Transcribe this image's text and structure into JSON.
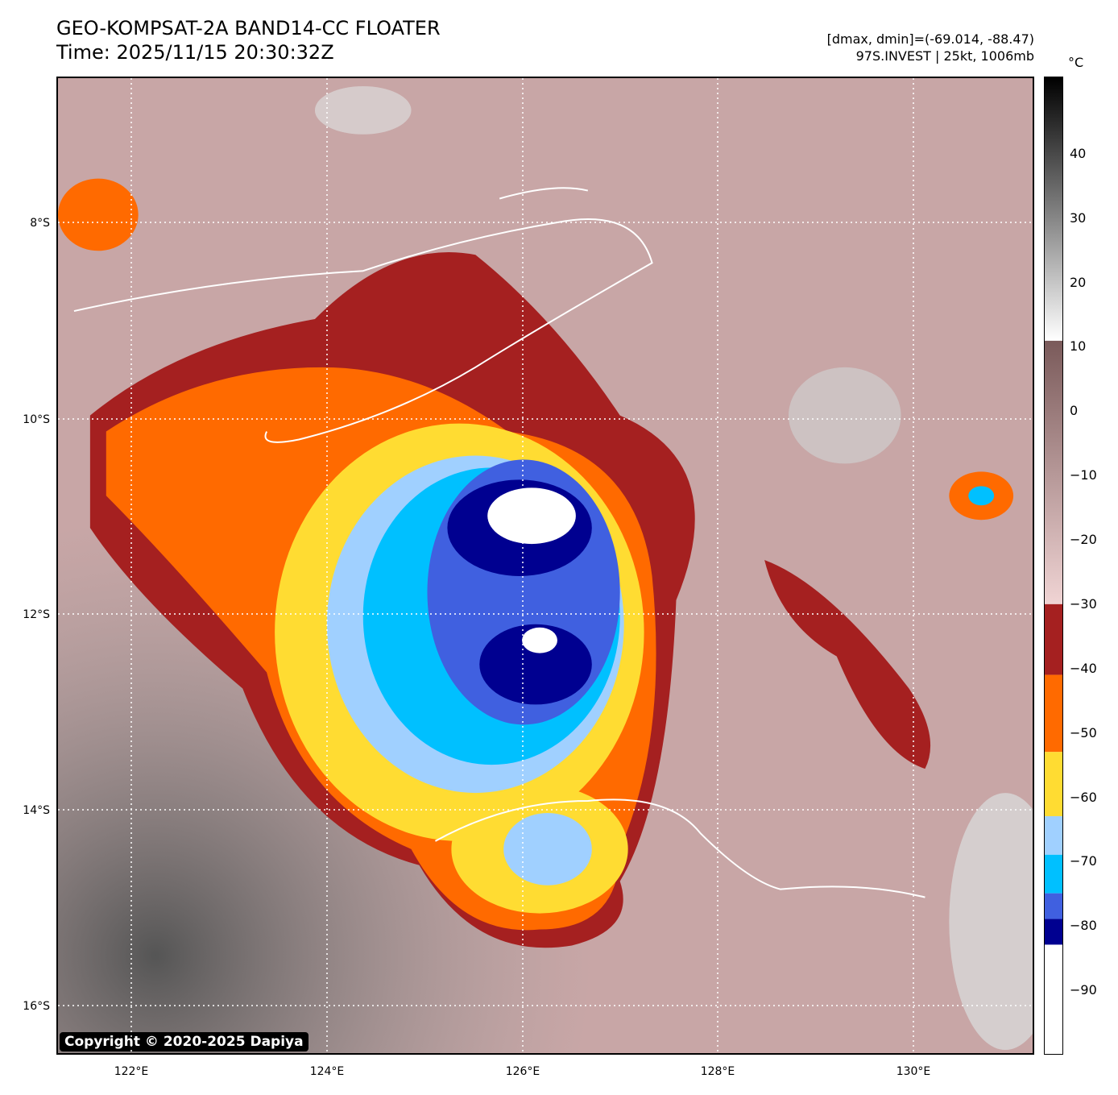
{
  "header": {
    "title_line1": "GEO-KOMPSAT-2A BAND14-CC FLOATER",
    "title_line2": "Time: 2025/11/15 20:30:32Z",
    "info_line1": "[dmax, dmin]=(-69.014, -88.47)",
    "info_line2": "97S.INVEST | 25kt, 1006mb"
  },
  "map": {
    "lat_labels": [
      "8°S",
      "10°S",
      "12°S",
      "14°S",
      "16°S"
    ],
    "lon_labels": [
      "122°E",
      "124°E",
      "126°E",
      "128°E",
      "130°E"
    ],
    "copyright": "Copyright © 2020-2025 Dapiya"
  },
  "colorbar": {
    "unit": "°C",
    "tick_labels": [
      "40",
      "30",
      "20",
      "10",
      "0",
      "−10",
      "−20",
      "−30",
      "−40",
      "−50",
      "−60",
      "−70",
      "−80",
      "−90"
    ],
    "colors": {
      "hot": "#000000",
      "gray": "#8a8a8a",
      "light": "#ffffff",
      "brown": "#7a5a5a",
      "pink": "#f0d4d4",
      "darkred": "#a52020",
      "orange": "#ff6a00",
      "yellow": "#ffdc32",
      "lightblue": "#a0d0ff",
      "cyan": "#00c0ff",
      "blue": "#4060e0",
      "navy": "#000090",
      "white": "#ffffff"
    }
  }
}
